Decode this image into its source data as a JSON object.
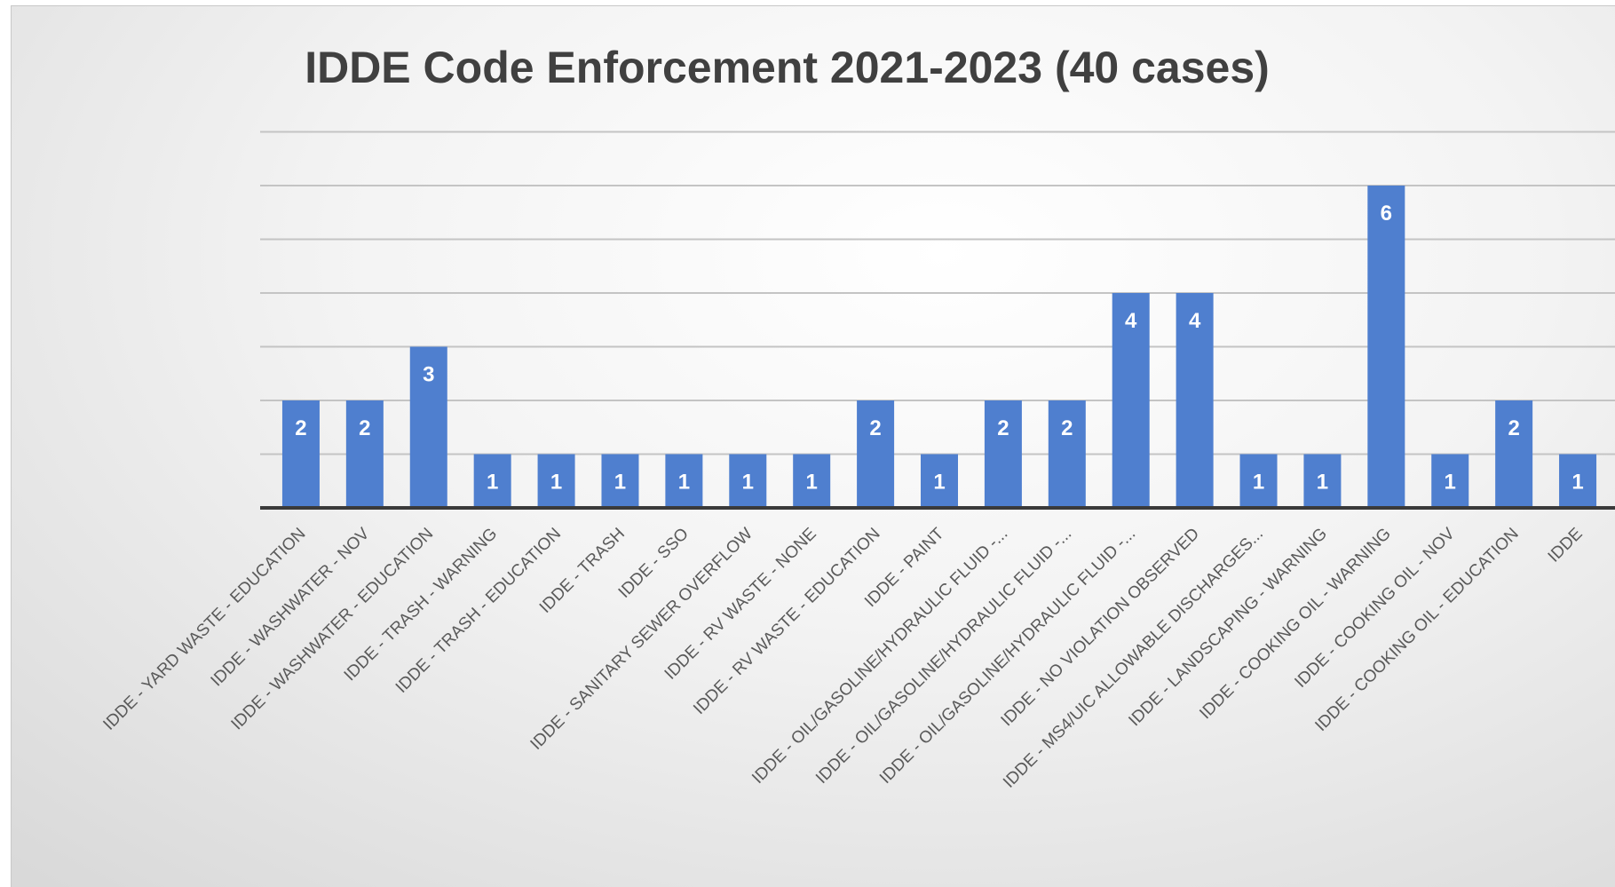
{
  "chart_data": {
    "type": "bar",
    "title": "IDDE Code Enforcement 2021-2023 (40 cases)",
    "xlabel": "",
    "ylabel": "",
    "ylim": [
      0,
      7
    ],
    "grid": true,
    "legend": "none",
    "bar_color": "#4f7fcf",
    "categories": [
      "IDDE - YARD WASTE - EDUCATION",
      "IDDE - WASHWATER - NOV",
      "IDDE - WASHWATER - EDUCATION",
      "IDDE - TRASH - WARNING",
      "IDDE - TRASH - EDUCATION",
      "IDDE - TRASH",
      "IDDE - SSO",
      "IDDE - SANITARY SEWER OVERFLOW",
      "IDDE - RV WASTE - NONE",
      "IDDE - RV WASTE - EDUCATION",
      "IDDE - PAINT",
      "IDDE - OIL/GASOLINE/HYDRAULIC FLUID -...",
      "IDDE - OIL/GASOLINE/HYDRAULIC FLUID -...",
      "IDDE - OIL/GASOLINE/HYDRAULIC FLUID -...",
      "IDDE - NO VIOLATION OBSERVED",
      "IDDE - MS4/UIC ALLOWABLE DISCHARGES...",
      "IDDE - LANDSCAPING - WARNING",
      "IDDE - COOKING OIL - WARNING",
      "IDDE - COOKING OIL - NOV",
      "IDDE - COOKING OIL - EDUCATION",
      "IDDE"
    ],
    "values": [
      2,
      2,
      3,
      1,
      1,
      1,
      1,
      1,
      1,
      2,
      1,
      2,
      2,
      4,
      4,
      1,
      1,
      6,
      1,
      2,
      1
    ]
  }
}
